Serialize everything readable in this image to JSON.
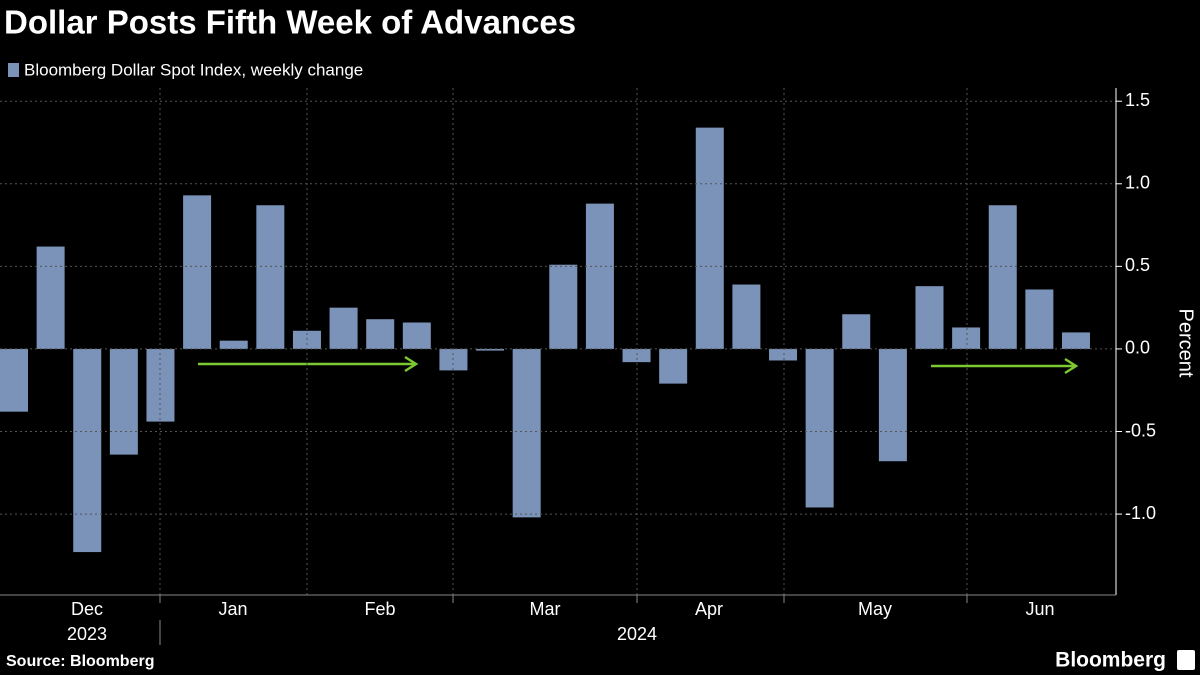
{
  "chart_data": {
    "type": "bar",
    "title": "Dollar Posts Fifth Week of Advances",
    "legend": "Bloomberg Dollar Spot Index, weekly change",
    "y_label": "Percent",
    "source": "Source: Bloomberg",
    "brand": "Bloomberg",
    "color": "#7b93b8",
    "categories": [
      null,
      null,
      null,
      null,
      null,
      null,
      null,
      null,
      null,
      null,
      null,
      null,
      null,
      null,
      null,
      null,
      null,
      null,
      null,
      null,
      null,
      null,
      null,
      null,
      null,
      null,
      null,
      null,
      null,
      null
    ],
    "values": [
      -0.38,
      0.62,
      -1.23,
      -0.64,
      -0.44,
      0.93,
      0.05,
      0.87,
      0.11,
      0.25,
      0.18,
      0.16,
      -0.13,
      -0.01,
      -1.02,
      0.51,
      0.88,
      -0.08,
      -0.21,
      1.34,
      0.39,
      -0.07,
      -0.96,
      0.21,
      -0.68,
      0.38,
      0.13,
      0.87,
      0.36,
      0.1
    ],
    "month_labels": [
      "Dec",
      "Jan",
      "Feb",
      "Mar",
      "Apr",
      "May",
      "Jun"
    ],
    "year_labels": [
      "2023",
      "2024"
    ],
    "ylim": [
      -1.49,
      1.58
    ],
    "yticks": [
      1.5,
      {
        "value": 1.0,
        "label": "1.0"
      },
      0.5,
      {
        "value": 0.0,
        "label": "0.0"
      },
      -0.5,
      {
        "value": -1.0,
        "label": "-1.0"
      }
    ],
    "grid": true
  }
}
